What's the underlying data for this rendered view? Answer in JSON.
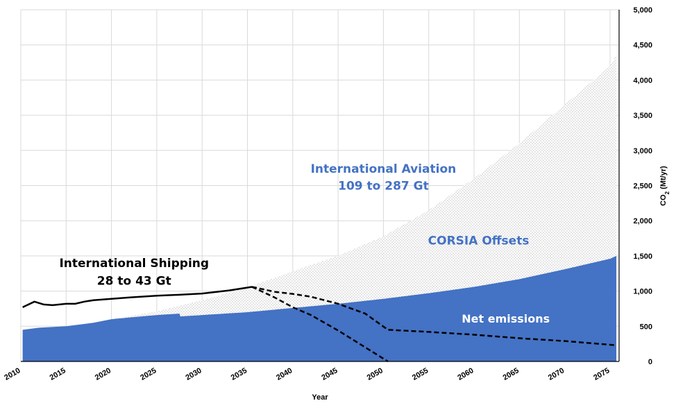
{
  "chart_data": {
    "type": "area",
    "title": "",
    "xlabel": "Year",
    "ylabel_main": "CO",
    "ylabel_sub": "2",
    "ylabel_unit": " (Mt/yr)",
    "xlim": [
      2010,
      2076
    ],
    "ylim": [
      0,
      5000
    ],
    "x_ticks": [
      2010,
      2015,
      2020,
      2025,
      2030,
      2035,
      2040,
      2045,
      2050,
      2055,
      2060,
      2065,
      2070,
      2075
    ],
    "y_ticks": [
      0,
      500,
      1000,
      1500,
      2000,
      2500,
      3000,
      3500,
      4000,
      4500,
      5000
    ],
    "y_tick_labels": [
      "0",
      "500",
      "1,000",
      "1,500",
      "2,000",
      "2,500",
      "3,000",
      "3,500",
      "4,000",
      "4,500",
      "5,000"
    ],
    "grid": true,
    "y_axis_side": "right",
    "colors": {
      "net": "#4472c4",
      "offsets_dots": "#7f7f7f",
      "annotation_blue": "#4472c4",
      "line": "#000000"
    },
    "series": [
      {
        "name": "Net emissions",
        "kind": "area-filled",
        "x": [
          2010.2,
          2012,
          2015,
          2018,
          2020,
          2022,
          2025,
          2027.5,
          2027.6,
          2030,
          2035,
          2040,
          2045,
          2050,
          2055,
          2060,
          2065,
          2070,
          2075,
          2075.7
        ],
        "y": [
          450,
          480,
          500,
          550,
          600,
          625,
          660,
          680,
          640,
          660,
          700,
          760,
          820,
          890,
          970,
          1060,
          1170,
          1310,
          1460,
          1500
        ]
      },
      {
        "name": "CORSIA Offsets",
        "kind": "area-dotted",
        "x": [
          2020,
          2025,
          2030,
          2035,
          2040,
          2045,
          2050,
          2055,
          2060,
          2065,
          2070,
          2075,
          2075.7
        ],
        "y": [
          600,
          710,
          870,
          1050,
          1280,
          1500,
          1780,
          2150,
          2600,
          3100,
          3650,
          4200,
          4350
        ]
      },
      {
        "name": "International Shipping",
        "kind": "line-solid",
        "x": [
          2010.2,
          2011.5,
          2012.5,
          2013.5,
          2015,
          2016,
          2017,
          2018,
          2019,
          2020,
          2022,
          2025,
          2027,
          2030,
          2033,
          2035.5
        ],
        "y": [
          770,
          850,
          810,
          800,
          820,
          820,
          850,
          870,
          880,
          890,
          910,
          935,
          945,
          965,
          1010,
          1060
        ]
      },
      {
        "name": "Shipping high",
        "kind": "line-dashed",
        "x": [
          2035.5,
          2038,
          2040,
          2042,
          2045,
          2048,
          2050.5,
          2055,
          2060,
          2065,
          2070,
          2075.7
        ],
        "y": [
          1060,
          990,
          960,
          920,
          820,
          680,
          450,
          420,
          380,
          330,
          290,
          230
        ]
      },
      {
        "name": "Shipping low",
        "kind": "line-dashed",
        "x": [
          2035.5,
          2038,
          2040,
          2042,
          2045,
          2047,
          2049,
          2050.5
        ],
        "y": [
          1060,
          910,
          770,
          660,
          440,
          280,
          120,
          0
        ]
      }
    ],
    "annotations": [
      {
        "id": "aviation",
        "line1": "International Aviation",
        "line2": "109 to 287 Gt",
        "x": 2050,
        "y": 2680,
        "y2": 2440,
        "style": "blue"
      },
      {
        "id": "corsia",
        "line1": "CORSIA Offsets",
        "x": 2060.5,
        "y": 1660,
        "style": "blue"
      },
      {
        "id": "net",
        "line1": "Net emissions",
        "x": 2063.5,
        "y": 550,
        "style": "white"
      },
      {
        "id": "shipping",
        "line1": "International Shipping",
        "line2": "28 to 43 Gt",
        "x": 2022.5,
        "y": 1340,
        "y2": 1090,
        "style": "black"
      }
    ]
  }
}
